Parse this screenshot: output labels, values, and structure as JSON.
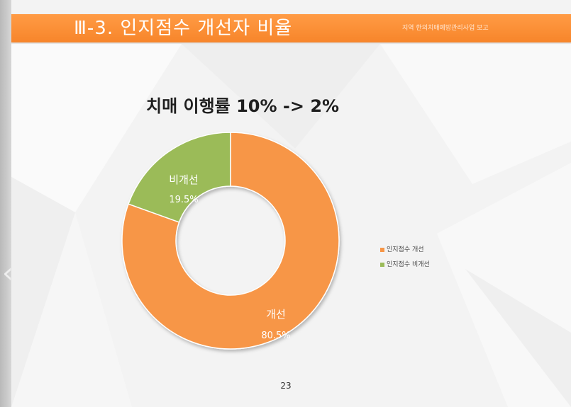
{
  "header": {
    "title": "Ⅲ-3. 인지점수 개선자 비율",
    "subtitle": "지역 한의치매예방관리사업 보고",
    "background_color": "#f7852a"
  },
  "chart_data": {
    "type": "pie",
    "style": "doughnut",
    "title": "치매 이행률 10%  -> 2%",
    "slices": [
      {
        "name": "인지점수 개선",
        "label": "개선",
        "value": 80.5,
        "value_label": "80.5%",
        "color": "#f79646"
      },
      {
        "name": "인지점수 비개선",
        "label": "비개선",
        "value": 19.5,
        "value_label": "19.5%",
        "color": "#9bbb59"
      }
    ],
    "legend_position": "right"
  },
  "footer": {
    "page_number": "23"
  },
  "navigation": {
    "prev_icon": "chevron-left-icon"
  }
}
